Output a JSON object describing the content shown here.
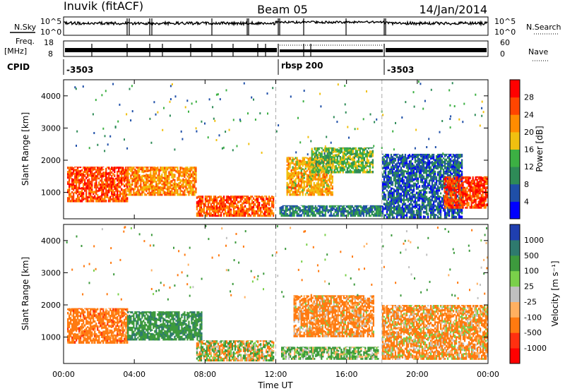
{
  "header": {
    "station": "Inuvik (fitACF)",
    "beam": "Beam 05",
    "date": "14/Jan/2014"
  },
  "top_panels": {
    "nsky_label": "N.Sky",
    "nsky_ticks": [
      "10^5",
      "10^0"
    ],
    "nsearch_label": "N.Search",
    "nsearch_ticks": [
      "10^5",
      "10^0"
    ],
    "freq_label": "Freq.",
    "freq_unit": "[MHz]",
    "freq_ticks": [
      "18",
      "8"
    ],
    "nave_label": "Nave",
    "nave_ticks": [
      "60",
      "0"
    ],
    "cpid_label": "CPID",
    "cpid_segments": [
      "-3503",
      "rbsp 200",
      "-3503"
    ]
  },
  "chart_data": [
    {
      "type": "heatmap",
      "name": "power",
      "ylabel": "Slant Range [km]",
      "yticks": [
        "1000",
        "2000",
        "3000",
        "4000"
      ],
      "ylim": [
        180,
        4500
      ],
      "xlim": [
        0,
        24
      ],
      "colorbar": {
        "label": "Power [dB]",
        "ticks": [
          "4",
          "8",
          "12",
          "16",
          "20",
          "24",
          "28"
        ],
        "colors": [
          "#0000ff",
          "#1f4fa8",
          "#2e8b57",
          "#3cb043",
          "#f0c010",
          "#ff8c00",
          "#ff4500",
          "#ff0000"
        ]
      },
      "regions": [
        {
          "t0": 0.2,
          "t1": 3.6,
          "r0": 700,
          "r1": 1800,
          "v": 26
        },
        {
          "t0": 3.6,
          "t1": 7.5,
          "r0": 900,
          "r1": 1800,
          "v": 22
        },
        {
          "t0": 7.5,
          "t1": 11.9,
          "r0": 250,
          "r1": 900,
          "v": 25
        },
        {
          "t0": 12.6,
          "t1": 15.2,
          "r0": 900,
          "r1": 2100,
          "v": 20
        },
        {
          "t0": 14.0,
          "t1": 17.5,
          "r0": 1600,
          "r1": 2400,
          "v": 14
        },
        {
          "t0": 12.2,
          "t1": 18.0,
          "r0": 250,
          "r1": 600,
          "v": 9
        },
        {
          "t0": 18.0,
          "t1": 22.5,
          "r0": 200,
          "r1": 2200,
          "v": 7
        },
        {
          "t0": 21.5,
          "t1": 24.0,
          "r0": 500,
          "r1": 1500,
          "v": 27
        }
      ]
    },
    {
      "type": "heatmap",
      "name": "velocity",
      "xlabel": "Time UT",
      "ylabel": "Slant Range [km]",
      "yticks": [
        "1000",
        "2000",
        "3000",
        "4000"
      ],
      "ylim": [
        180,
        4500
      ],
      "xlim": [
        0,
        24
      ],
      "xticks": [
        "00:00",
        "04:00",
        "08:00",
        "12:00",
        "16:00",
        "20:00",
        "00:00"
      ],
      "colorbar": {
        "label": "Velocity [m s⁻¹]",
        "ticks": [
          "1000",
          "500",
          "100",
          "25",
          "-25",
          "-100",
          "-500",
          "-1000"
        ],
        "colors": [
          "#1f3fb0",
          "#2e7a6e",
          "#3d9a3d",
          "#7ad04a",
          "#c0c0c0",
          "#ffb060",
          "#ff7a10",
          "#ff3010",
          "#ff0000"
        ]
      },
      "regions": [
        {
          "t0": 0.2,
          "t1": 3.6,
          "r0": 800,
          "r1": 1900,
          "v": -300
        },
        {
          "t0": 3.6,
          "t1": 7.8,
          "r0": 900,
          "r1": 1800,
          "v": 400
        },
        {
          "t0": 7.5,
          "t1": 11.9,
          "r0": 250,
          "r1": 900,
          "v": 10
        },
        {
          "t0": 12.3,
          "t1": 17.8,
          "r0": 300,
          "r1": 700,
          "v": 150
        },
        {
          "t0": 13.0,
          "t1": 17.5,
          "r0": 1000,
          "r1": 2300,
          "v": -200
        },
        {
          "t0": 18.0,
          "t1": 24.0,
          "r0": 300,
          "r1": 2000,
          "v": -150
        }
      ]
    }
  ]
}
